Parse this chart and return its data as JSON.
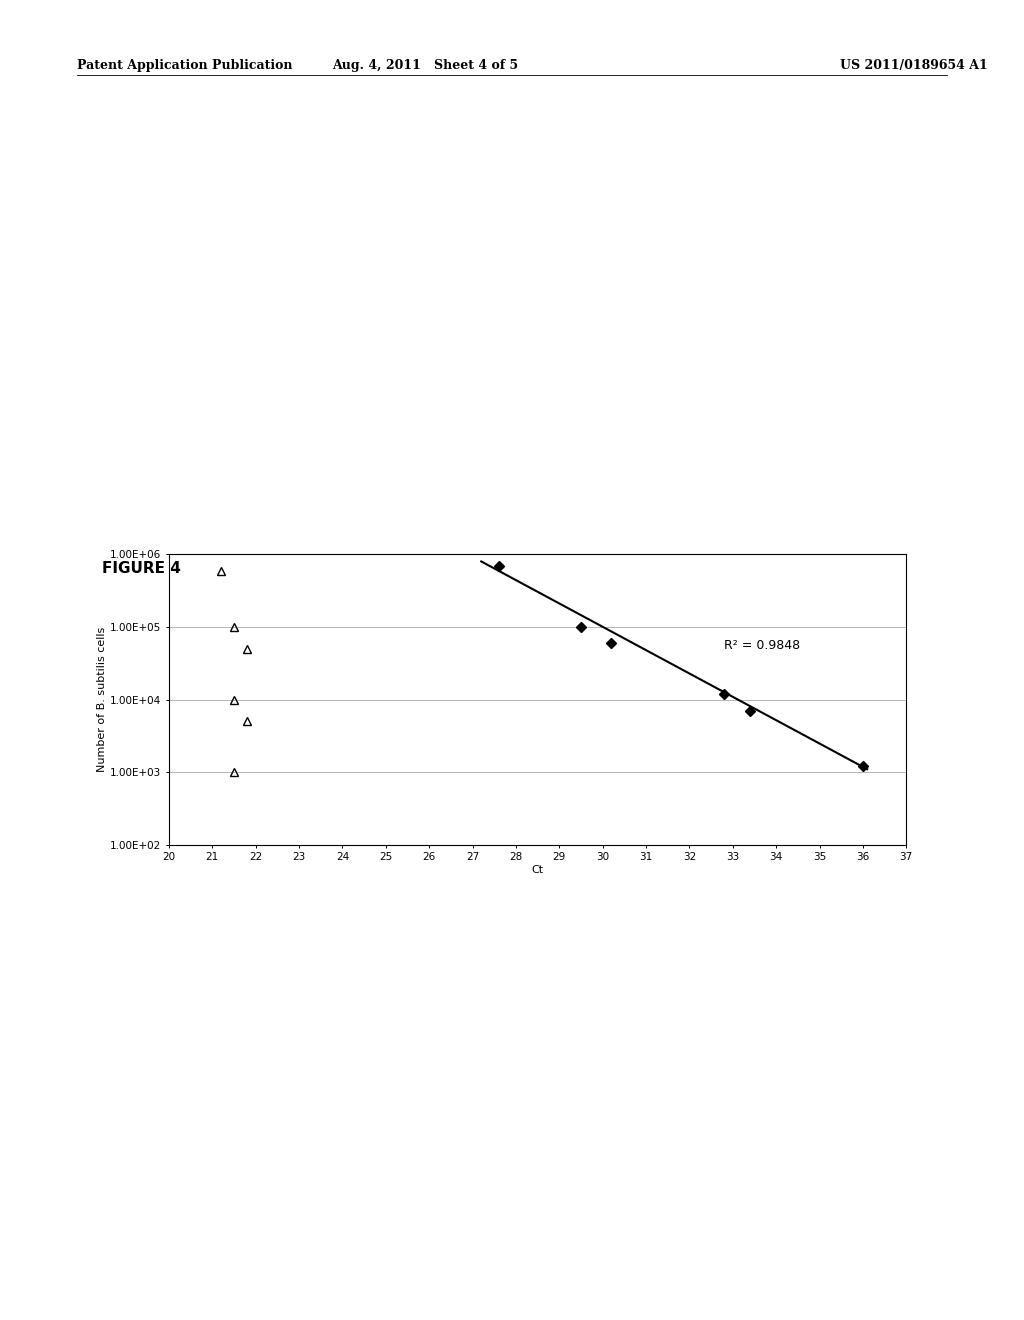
{
  "header_left": "Patent Application Publication",
  "header_mid": "Aug. 4, 2011   Sheet 4 of 5",
  "header_right": "US 2011/0189654 A1",
  "figure_label": "FIGURE 4",
  "xlabel": "Ct",
  "ylabel": "Number of B. subtilis cells",
  "xlim": [
    20,
    37
  ],
  "ylim_log": [
    100,
    1000000
  ],
  "xticks": [
    20,
    21,
    22,
    23,
    24,
    25,
    26,
    27,
    28,
    29,
    30,
    31,
    32,
    33,
    34,
    35,
    36,
    37
  ],
  "ytick_labels": [
    "1.00E+02",
    "1.00E+03",
    "1.00E+04",
    "1.00E+05",
    "1.00E+06"
  ],
  "ytick_values": [
    100,
    1000,
    10000,
    100000,
    1000000
  ],
  "diamond_x": [
    27.6,
    29.5,
    30.2,
    32.8,
    33.4,
    36.0
  ],
  "diamond_y": [
    700000,
    100000,
    60000,
    12000,
    7000,
    1200
  ],
  "triangle_x": [
    21.2,
    21.5,
    21.8,
    21.5,
    21.8,
    21.5
  ],
  "triangle_y": [
    600000,
    100000,
    50000,
    10000,
    5000,
    1000
  ],
  "trendline_x": [
    27.2,
    36.1
  ],
  "trendline_y": [
    800000,
    1100
  ],
  "r2_text": "R² = 0.9848",
  "r2_x": 32.8,
  "r2_y": 55000,
  "background_color": "#ffffff",
  "plot_bg_color": "#ffffff",
  "grid_color": "#aaaaaa",
  "line_color": "#000000",
  "marker_color": "#000000",
  "header_fontsize": 9,
  "figure_label_fontsize": 11,
  "axis_label_fontsize": 8,
  "tick_fontsize": 7.5,
  "annotation_fontsize": 9
}
